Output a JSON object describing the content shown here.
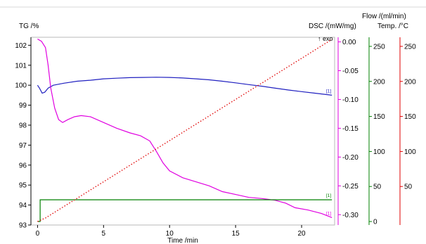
{
  "chart_data": {
    "type": "line",
    "xlabel": "Time /min",
    "xlim": [
      -0.5,
      22.5
    ],
    "x_ticks": [
      "0",
      "5",
      "10",
      "15",
      "20"
    ],
    "grid": false,
    "exo_label": "↑ exo",
    "series_tag": "[1]",
    "axes": [
      {
        "id": "tg",
        "label": "TG /%",
        "range": [
          93,
          102.4
        ],
        "ticks": [
          "93",
          "94",
          "95",
          "96",
          "97",
          "98",
          "99",
          "100",
          "101",
          "102"
        ],
        "color": "#000000"
      },
      {
        "id": "dsc",
        "label": "DSC /(mW/mg)",
        "range": [
          -0.318,
          0.008
        ],
        "ticks": [
          "0.00",
          "-0.05",
          "-0.10",
          "-0.15",
          "-0.20",
          "-0.25",
          "-0.30"
        ],
        "color": "#e000e0"
      },
      {
        "id": "flow",
        "label": "Flow /(ml/min)",
        "range": [
          -5,
          263
        ],
        "ticks": [
          "0",
          "50",
          "100",
          "150",
          "200",
          "250"
        ],
        "color": "#008000"
      },
      {
        "id": "temp",
        "label": "Temp. /°C",
        "range": [
          -5,
          263
        ],
        "ticks": [
          "50",
          "100",
          "150",
          "200",
          "250"
        ],
        "color": "#e00000"
      }
    ],
    "series": [
      {
        "axis": "tg",
        "color": "#2020c0",
        "x": [
          0,
          0.15,
          0.35,
          0.55,
          0.8,
          1.2,
          2,
          3,
          4,
          5,
          6,
          7,
          8,
          9,
          10,
          11,
          12,
          13,
          14,
          15,
          16,
          17,
          18,
          19,
          20,
          21,
          22.3
        ],
        "y": [
          100.0,
          99.85,
          99.6,
          99.65,
          99.85,
          100.0,
          100.1,
          100.2,
          100.25,
          100.32,
          100.35,
          100.38,
          100.39,
          100.4,
          100.39,
          100.36,
          100.32,
          100.27,
          100.2,
          100.12,
          100.03,
          99.95,
          99.85,
          99.76,
          99.68,
          99.6,
          99.5
        ]
      },
      {
        "axis": "dsc",
        "color": "#e000e0",
        "x": [
          0,
          0.3,
          0.6,
          0.8,
          1.0,
          1.3,
          1.6,
          1.9,
          2.3,
          2.8,
          3.3,
          4,
          5,
          6,
          7,
          7.8,
          8.5,
          9,
          9.5,
          10,
          11,
          12,
          13,
          14,
          15,
          16,
          17,
          18,
          18.8,
          19.5,
          20.5,
          21.5,
          22.3
        ],
        "y": [
          0.005,
          0.001,
          -0.01,
          -0.04,
          -0.08,
          -0.115,
          -0.135,
          -0.14,
          -0.135,
          -0.13,
          -0.128,
          -0.13,
          -0.14,
          -0.15,
          -0.158,
          -0.163,
          -0.172,
          -0.19,
          -0.21,
          -0.224,
          -0.236,
          -0.243,
          -0.25,
          -0.26,
          -0.265,
          -0.27,
          -0.272,
          -0.275,
          -0.28,
          -0.288,
          -0.292,
          -0.298,
          -0.305
        ]
      },
      {
        "axis": "flow",
        "color": "#008000",
        "x": [
          0,
          0.2,
          0.2,
          22.3
        ],
        "y": [
          0,
          0,
          31,
          31
        ]
      },
      {
        "axis": "temp",
        "color": "#e00000",
        "dashed": true,
        "x": [
          0,
          0.6,
          22.3
        ],
        "y": [
          0,
          5,
          260
        ]
      }
    ]
  }
}
